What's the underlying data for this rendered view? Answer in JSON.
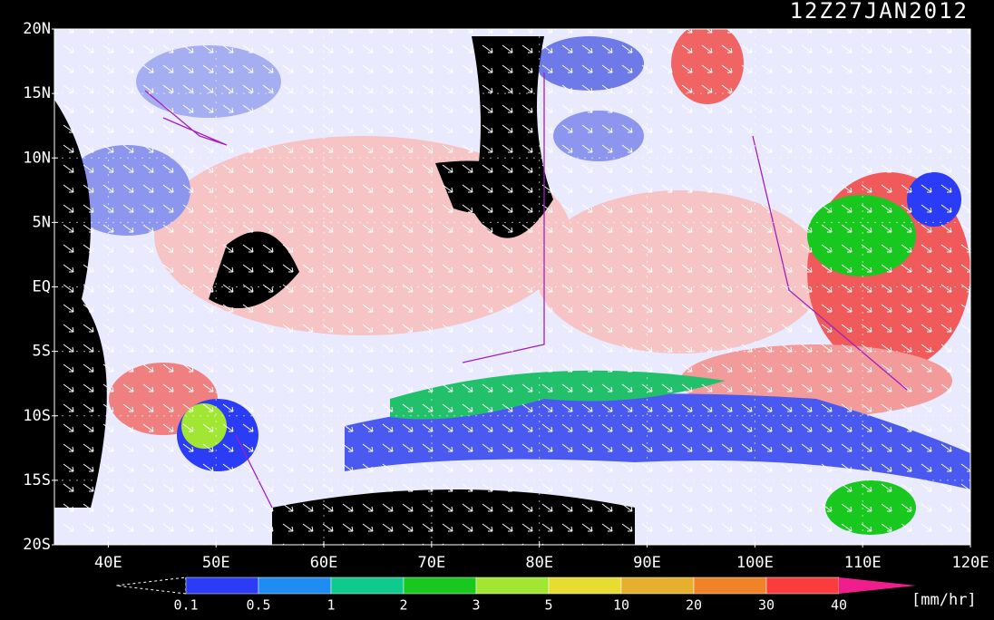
{
  "title": "12Z27JAN2012",
  "lat_labels": [
    "20N",
    "15N",
    "10N",
    "5N",
    "EQ",
    "5S",
    "10S",
    "15S",
    "20S"
  ],
  "lon_labels": [
    "40E",
    "50E",
    "60E",
    "70E",
    "80E",
    "90E",
    "100E",
    "110E",
    "120E"
  ],
  "colorbar": {
    "levels": [
      0.1,
      0.5,
      1,
      2,
      3,
      5,
      10,
      20,
      30,
      40
    ],
    "colors": [
      "#2a3cf5",
      "#1e8cf0",
      "#10c98c",
      "#18c81e",
      "#a0e632",
      "#e6dc32",
      "#e6af2d",
      "#f08228",
      "#fa3c3c",
      "#f01e8c"
    ],
    "unit": "[mm/hr]"
  }
}
